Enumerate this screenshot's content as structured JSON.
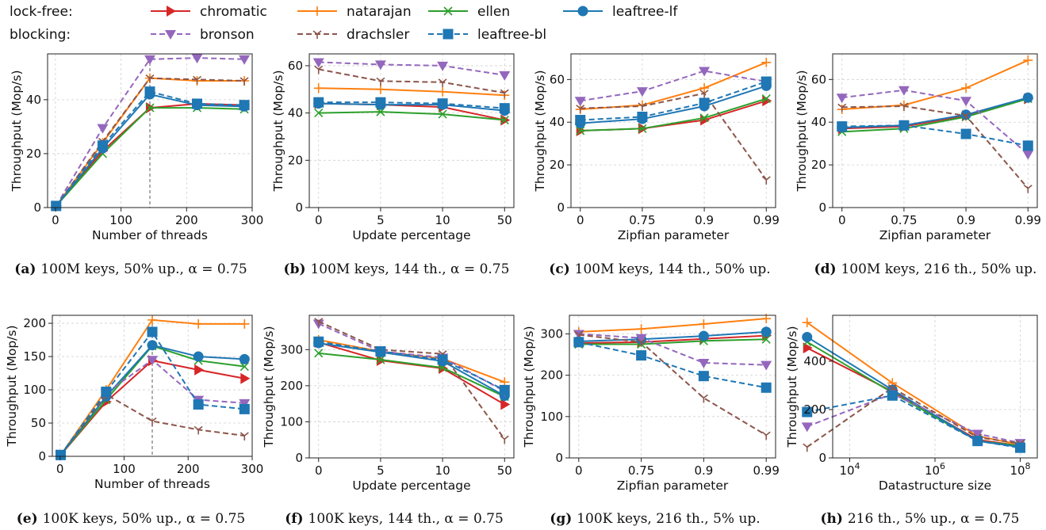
{
  "legend": {
    "groups": [
      {
        "label": "lock-free:",
        "entries": [
          "chromatic",
          "natarajan",
          "ellen",
          "leaftree-lf"
        ]
      },
      {
        "label": "blocking:",
        "entries": [
          "bronson",
          "drachsler",
          "leaftree-bl"
        ]
      }
    ]
  },
  "series_styles": {
    "chromatic": {
      "color": "#d62728",
      "marker": "triangle-right",
      "dash": "solid"
    },
    "natarajan": {
      "color": "#ff7f0e",
      "marker": "plus",
      "dash": "solid"
    },
    "ellen": {
      "color": "#2ca02c",
      "marker": "x",
      "dash": "solid"
    },
    "leaftree-lf": {
      "color": "#1f77b4",
      "marker": "circle",
      "dash": "solid"
    },
    "bronson": {
      "color": "#9467bd",
      "marker": "triangle-down",
      "dash": "dashed"
    },
    "drachsler": {
      "color": "#8c564b",
      "marker": "tri-down",
      "dash": "dashed"
    },
    "leaftree-bl": {
      "color": "#1f77b4",
      "marker": "square",
      "dash": "dashed"
    }
  },
  "chart_data": [
    {
      "type": "line",
      "id": "a",
      "caption_tag": "(a)",
      "caption": "100M keys, 50% up., α = 0.75",
      "xlabel": "Number of threads",
      "ylabel": "Throughput (Mop/s)",
      "xscale": "linear",
      "xlim": [
        -12,
        300
      ],
      "ylim": [
        0,
        57
      ],
      "xticks": [
        0,
        100,
        200,
        300
      ],
      "xticklabels": [
        "0",
        "100",
        "200",
        "300"
      ],
      "yticks": [
        0,
        20,
        40
      ],
      "yticklabels": [
        "0",
        "20",
        "40"
      ],
      "vline": 144,
      "x": [
        1,
        72,
        144,
        216,
        288
      ],
      "series": [
        {
          "name": "chromatic",
          "values": [
            0.6,
            21,
            37,
            38.5,
            38
          ]
        },
        {
          "name": "natarajan",
          "values": [
            0.6,
            24,
            48,
            47,
            47
          ]
        },
        {
          "name": "ellen",
          "values": [
            0.6,
            20,
            37,
            37,
            36.5
          ]
        },
        {
          "name": "leaftree-lf",
          "values": [
            0.6,
            22,
            42,
            38,
            37.5
          ]
        },
        {
          "name": "bronson",
          "values": [
            0.6,
            29.5,
            55,
            55.5,
            55
          ]
        },
        {
          "name": "drachsler",
          "values": [
            0.6,
            24.5,
            48,
            47.5,
            47
          ]
        },
        {
          "name": "leaftree-bl",
          "values": [
            0.6,
            23,
            43,
            38.5,
            38
          ]
        }
      ]
    },
    {
      "type": "line",
      "id": "b",
      "caption_tag": "(b)",
      "caption": "100M keys, 144 th., α = 0.75",
      "xlabel": "Update percentage",
      "ylabel": "Throughput (Mop/s)",
      "xscale": "category",
      "xlim": [
        -0.15,
        3.15
      ],
      "ylim": [
        0,
        65
      ],
      "categories": [
        "0",
        "5",
        "10",
        "50"
      ],
      "yticks": [
        0,
        20,
        40,
        60
      ],
      "yticklabels": [
        "0",
        "20",
        "40",
        "60"
      ],
      "series": [
        {
          "name": "chromatic",
          "values": [
            44,
            43.5,
            42.5,
            37
          ]
        },
        {
          "name": "natarajan",
          "values": [
            50.5,
            50,
            49,
            47.5
          ]
        },
        {
          "name": "ellen",
          "values": [
            40,
            40.5,
            39.5,
            37
          ]
        },
        {
          "name": "leaftree-lf",
          "values": [
            44,
            43.5,
            43.5,
            41
          ]
        },
        {
          "name": "bronson",
          "values": [
            61.5,
            60.5,
            60,
            56
          ]
        },
        {
          "name": "drachsler",
          "values": [
            58.5,
            53.5,
            53,
            48.5
          ]
        },
        {
          "name": "leaftree-bl",
          "values": [
            44.5,
            44.5,
            44,
            42
          ]
        }
      ]
    },
    {
      "type": "line",
      "id": "c",
      "caption_tag": "(c)",
      "caption": "100M keys, 144 th., 50% up.",
      "xlabel": "Zipfian parameter",
      "ylabel": "Throughput (Mop/s)",
      "xscale": "category",
      "xlim": [
        -0.15,
        3.15
      ],
      "ylim": [
        0,
        72
      ],
      "categories": [
        "0",
        "0.75",
        "0.9",
        "0.99"
      ],
      "yticks": [
        0,
        20,
        40,
        60
      ],
      "yticklabels": [
        "0",
        "20",
        "40",
        "60"
      ],
      "series": [
        {
          "name": "chromatic",
          "values": [
            36,
            37,
            41,
            50
          ]
        },
        {
          "name": "natarajan",
          "values": [
            46,
            48,
            56,
            68
          ]
        },
        {
          "name": "ellen",
          "values": [
            36,
            37,
            42,
            51
          ]
        },
        {
          "name": "leaftree-lf",
          "values": [
            39.5,
            41.5,
            47.5,
            57
          ]
        },
        {
          "name": "bronson",
          "values": [
            50,
            54.5,
            64,
            59
          ]
        },
        {
          "name": "drachsler",
          "values": [
            46.5,
            47.5,
            53.5,
            13
          ]
        },
        {
          "name": "leaftree-bl",
          "values": [
            41,
            42.5,
            49,
            59
          ]
        }
      ]
    },
    {
      "type": "line",
      "id": "d",
      "caption_tag": "(d)",
      "caption": "100M keys, 216 th., 50% up.",
      "xlabel": "Zipfian parameter",
      "ylabel": "Throughput (Mop/s)",
      "xscale": "category",
      "xlim": [
        -0.15,
        3.15
      ],
      "ylim": [
        0,
        72
      ],
      "categories": [
        "0",
        "0.75",
        "0.9",
        "0.99"
      ],
      "yticks": [
        0,
        20,
        40,
        60
      ],
      "yticklabels": [
        "0",
        "20",
        "40",
        "60"
      ],
      "series": [
        {
          "name": "chromatic",
          "values": [
            37,
            38,
            43,
            51
          ]
        },
        {
          "name": "natarajan",
          "values": [
            46,
            48,
            56,
            69
          ]
        },
        {
          "name": "ellen",
          "values": [
            35.5,
            37,
            42.5,
            51
          ]
        },
        {
          "name": "leaftree-lf",
          "values": [
            37.5,
            38.5,
            43.5,
            51.5
          ]
        },
        {
          "name": "bronson",
          "values": [
            51.5,
            55,
            50,
            25
          ]
        },
        {
          "name": "drachsler",
          "values": [
            47,
            47.5,
            43,
            9
          ]
        },
        {
          "name": "leaftree-bl",
          "values": [
            38,
            38.5,
            34.5,
            29
          ]
        }
      ]
    },
    {
      "type": "line",
      "id": "e",
      "caption_tag": "(e)",
      "caption": "100K keys, 50% up., α = 0.75",
      "xlabel": "Number of threads",
      "ylabel": "Throughput (Mop/s)",
      "xscale": "linear",
      "xlim": [
        -12,
        300
      ],
      "ylim": [
        0,
        212
      ],
      "xticks": [
        0,
        100,
        200,
        300
      ],
      "xticklabels": [
        "0",
        "100",
        "200",
        "300"
      ],
      "yticks": [
        0,
        50,
        100,
        150,
        200
      ],
      "yticklabels": [
        "0",
        "50",
        "100",
        "150",
        "200"
      ],
      "vline": 144,
      "x": [
        1,
        72,
        144,
        216,
        288
      ],
      "series": [
        {
          "name": "chromatic",
          "values": [
            2,
            82,
            144,
            130,
            117
          ]
        },
        {
          "name": "natarajan",
          "values": [
            2,
            100,
            205,
            199,
            199
          ]
        },
        {
          "name": "ellen",
          "values": [
            2,
            85,
            166,
            144,
            135
          ]
        },
        {
          "name": "leaftree-lf",
          "values": [
            2,
            90,
            167,
            150,
            146
          ]
        },
        {
          "name": "bronson",
          "values": [
            2,
            95,
            145,
            85,
            80
          ]
        },
        {
          "name": "drachsler",
          "values": [
            2,
            93,
            53,
            40,
            31
          ]
        },
        {
          "name": "leaftree-bl",
          "values": [
            2,
            97,
            187,
            78,
            71
          ]
        }
      ]
    },
    {
      "type": "line",
      "id": "f",
      "caption_tag": "(f)",
      "caption": "100K keys, 144 th., α = 0.75",
      "xlabel": "Update percentage",
      "ylabel": "Throughput (Mop/s)",
      "xscale": "category",
      "xlim": [
        -0.15,
        3.15
      ],
      "ylim": [
        0,
        395
      ],
      "categories": [
        "0",
        "5",
        "10",
        "50"
      ],
      "yticks": [
        0,
        100,
        200,
        300
      ],
      "yticklabels": [
        "0",
        "100",
        "200",
        "300"
      ],
      "series": [
        {
          "name": "chromatic",
          "values": [
            320,
            270,
            248,
            148
          ]
        },
        {
          "name": "natarajan",
          "values": [
            327,
            295,
            275,
            210
          ]
        },
        {
          "name": "ellen",
          "values": [
            290,
            272,
            250,
            170
          ]
        },
        {
          "name": "leaftree-lf",
          "values": [
            318,
            293,
            268,
            172
          ]
        },
        {
          "name": "bronson",
          "values": [
            372,
            295,
            278,
            185
          ]
        },
        {
          "name": "drachsler",
          "values": [
            378,
            300,
            288,
            52
          ]
        },
        {
          "name": "leaftree-bl",
          "values": [
            322,
            295,
            272,
            188
          ]
        }
      ]
    },
    {
      "type": "line",
      "id": "g",
      "caption_tag": "(g)",
      "caption": "100K keys, 216 th., 5% up.",
      "xlabel": "Zipfian parameter",
      "ylabel": "Throughput (Mop/s)",
      "xscale": "category",
      "xlim": [
        -0.15,
        3.15
      ],
      "ylim": [
        0,
        345
      ],
      "categories": [
        "0",
        "0.75",
        "0.9",
        "0.99"
      ],
      "yticks": [
        0,
        100,
        200,
        300
      ],
      "yticklabels": [
        "0",
        "100",
        "200",
        "300"
      ],
      "series": [
        {
          "name": "chromatic",
          "values": [
            278,
            280,
            288,
            296
          ]
        },
        {
          "name": "natarajan",
          "values": [
            305,
            312,
            324,
            337
          ]
        },
        {
          "name": "ellen",
          "values": [
            275,
            275,
            283,
            287
          ]
        },
        {
          "name": "leaftree-lf",
          "values": [
            282,
            287,
            295,
            305
          ]
        },
        {
          "name": "bronson",
          "values": [
            300,
            290,
            230,
            225
          ]
        },
        {
          "name": "drachsler",
          "values": [
            298,
            280,
            145,
            55
          ]
        },
        {
          "name": "leaftree-bl",
          "values": [
            280,
            248,
            198,
            170
          ]
        }
      ]
    },
    {
      "type": "line",
      "id": "h",
      "caption_tag": "(h)",
      "caption": "216 th., 5% up., α = 0.75",
      "xlabel": "Datastructure size",
      "ylabel": "Throughput (Mop/s)",
      "xscale": "log",
      "xlim": [
        3.6,
        8.4
      ],
      "ylim": [
        0,
        590
      ],
      "xticks": [
        4,
        6,
        8
      ],
      "xticklabels": [
        "10^4",
        "10^6",
        "10^8"
      ],
      "yticks": [
        0,
        200,
        400
      ],
      "yticklabels": [
        "0",
        "200",
        "400"
      ],
      "x": [
        1000,
        100000,
        10000000,
        100000000
      ],
      "series": [
        {
          "name": "chromatic",
          "values": [
            455,
            275,
            75,
            50
          ]
        },
        {
          "name": "natarajan",
          "values": [
            560,
            310,
            90,
            55
          ]
        },
        {
          "name": "ellen",
          "values": [
            480,
            270,
            70,
            50
          ]
        },
        {
          "name": "leaftree-lf",
          "values": [
            500,
            282,
            70,
            45
          ]
        },
        {
          "name": "bronson",
          "values": [
            130,
            265,
            100,
            62
          ]
        },
        {
          "name": "drachsler",
          "values": [
            45,
            290,
            85,
            60
          ]
        },
        {
          "name": "leaftree-bl",
          "values": [
            190,
            258,
            70,
            42
          ]
        }
      ]
    }
  ]
}
